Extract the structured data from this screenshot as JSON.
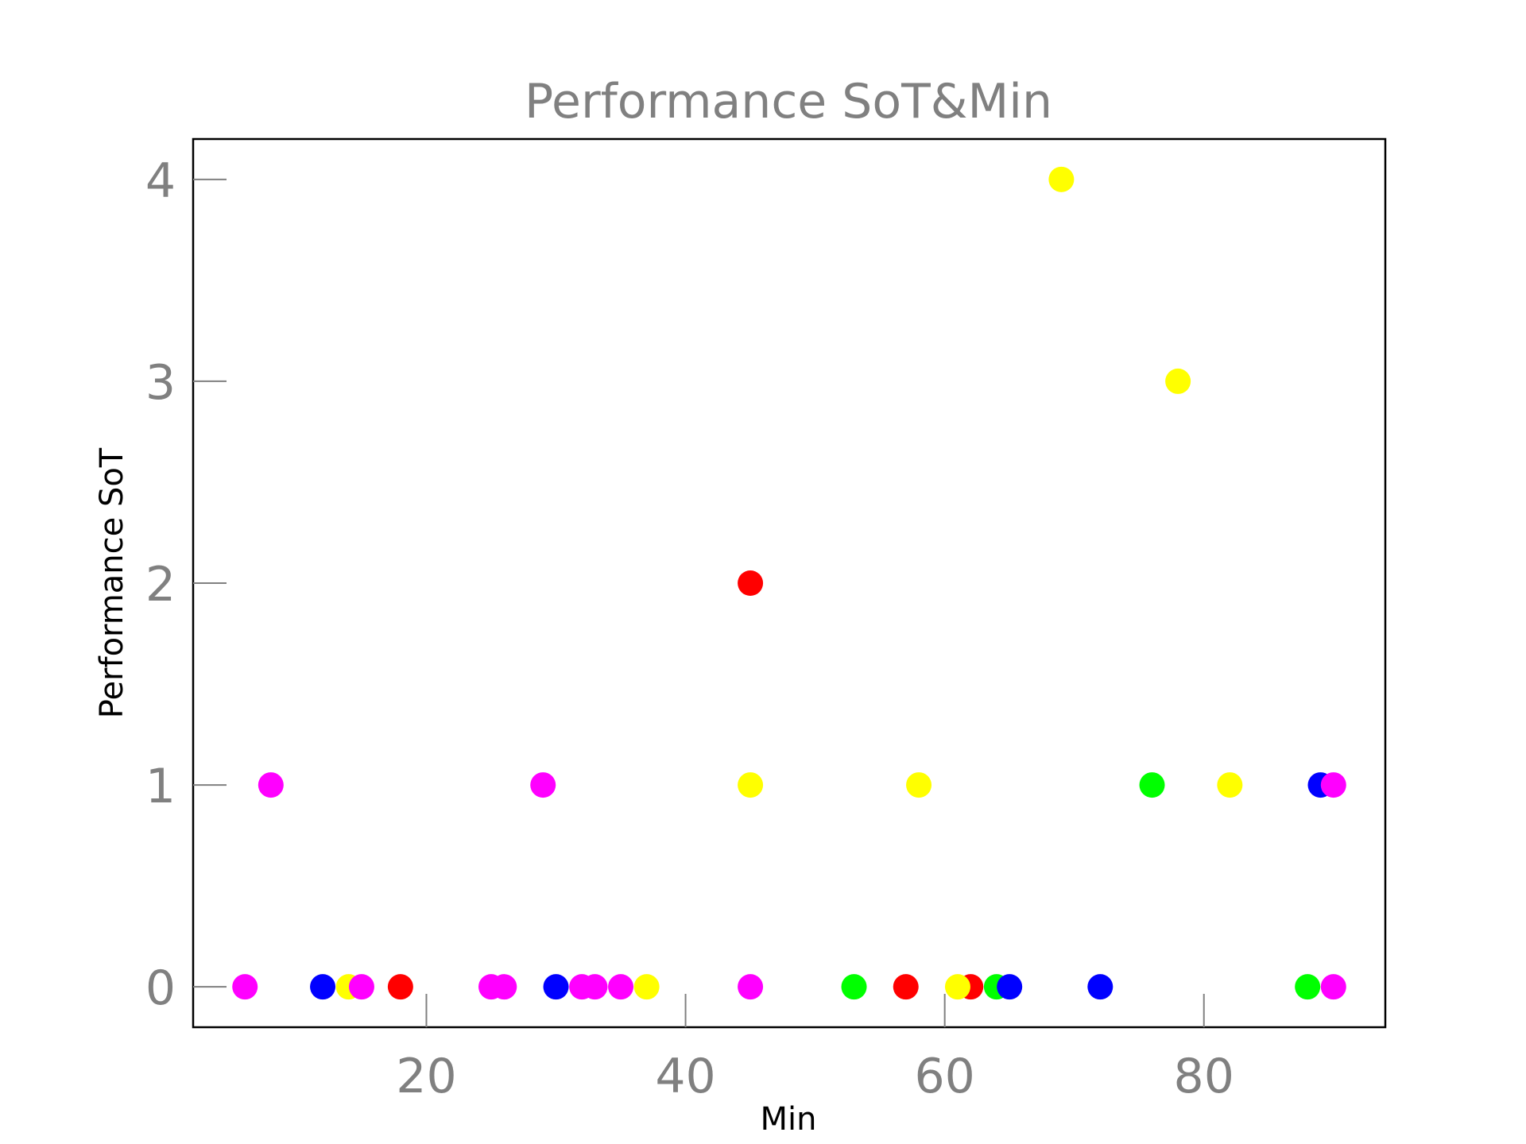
{
  "chart_data": {
    "type": "scatter",
    "title": "Performance SoT&Min",
    "xlabel": "Min",
    "ylabel": "Performance SoT",
    "xlim": [
      2,
      94
    ],
    "ylim": [
      -0.2,
      4.2
    ],
    "xticks": [
      20,
      40,
      60,
      80
    ],
    "yticks": [
      0,
      1,
      2,
      3,
      4
    ],
    "grid": false,
    "legend": "none",
    "points": [
      {
        "x": 6,
        "y": 0,
        "color": "#ff00ff"
      },
      {
        "x": 8,
        "y": 1,
        "color": "#ff00ff"
      },
      {
        "x": 12,
        "y": 0,
        "color": "#0000ff"
      },
      {
        "x": 14,
        "y": 0,
        "color": "#ffff00"
      },
      {
        "x": 15,
        "y": 0,
        "color": "#ff00ff"
      },
      {
        "x": 18,
        "y": 0,
        "color": "#ff0000"
      },
      {
        "x": 25,
        "y": 0,
        "color": "#ff00ff"
      },
      {
        "x": 26,
        "y": 0,
        "color": "#ff00ff"
      },
      {
        "x": 29,
        "y": 1,
        "color": "#ff00ff"
      },
      {
        "x": 30,
        "y": 0,
        "color": "#0000ff"
      },
      {
        "x": 32,
        "y": 0,
        "color": "#ff00ff"
      },
      {
        "x": 33,
        "y": 0,
        "color": "#ff00ff"
      },
      {
        "x": 35,
        "y": 0,
        "color": "#ff00ff"
      },
      {
        "x": 37,
        "y": 0,
        "color": "#ffff00"
      },
      {
        "x": 45,
        "y": 2,
        "color": "#ff0000"
      },
      {
        "x": 45,
        "y": 1,
        "color": "#ffff00"
      },
      {
        "x": 45,
        "y": 0,
        "color": "#ff00ff"
      },
      {
        "x": 53,
        "y": 0,
        "color": "#00ff00"
      },
      {
        "x": 57,
        "y": 0,
        "color": "#ff0000"
      },
      {
        "x": 58,
        "y": 1,
        "color": "#ffff00"
      },
      {
        "x": 62,
        "y": 0,
        "color": "#ff0000"
      },
      {
        "x": 61,
        "y": 0,
        "color": "#ffff00"
      },
      {
        "x": 64,
        "y": 0,
        "color": "#00ff00"
      },
      {
        "x": 65,
        "y": 0,
        "color": "#0000ff"
      },
      {
        "x": 69,
        "y": 4,
        "color": "#ffff00"
      },
      {
        "x": 72,
        "y": 0,
        "color": "#0000ff"
      },
      {
        "x": 76,
        "y": 1,
        "color": "#00ff00"
      },
      {
        "x": 78,
        "y": 3,
        "color": "#ffff00"
      },
      {
        "x": 82,
        "y": 1,
        "color": "#ffff00"
      },
      {
        "x": 88,
        "y": 0,
        "color": "#00ff00"
      },
      {
        "x": 89,
        "y": 1,
        "color": "#0000ff"
      },
      {
        "x": 90,
        "y": 0,
        "color": "#ff00ff"
      },
      {
        "x": 90,
        "y": 1,
        "color": "#ff00ff"
      }
    ]
  },
  "colors": {
    "text_gray": "#808080",
    "axis_black": "#000000",
    "tick_gray": "#808080"
  }
}
